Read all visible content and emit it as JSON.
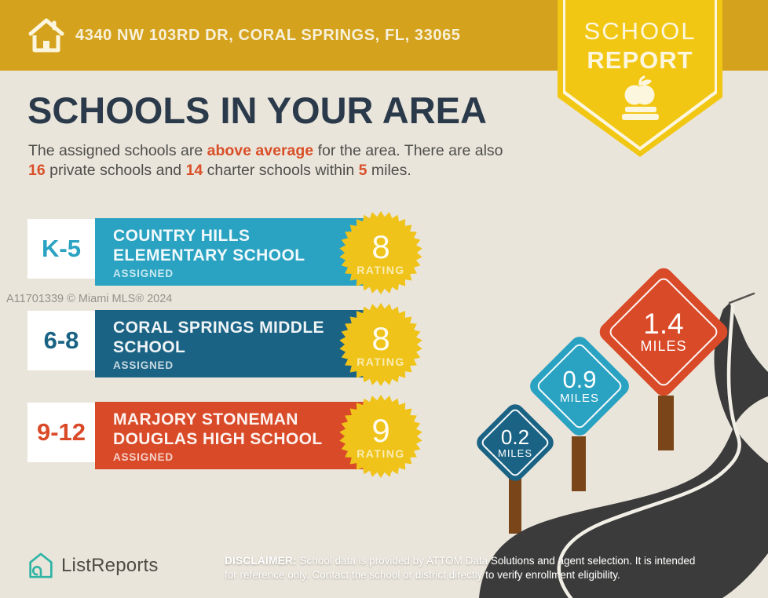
{
  "colors": {
    "beige": "#EAE5DB",
    "header_gold": "#D4A21C",
    "ribbon_yellow": "#F2C714",
    "badge_yellow": "#EFC31A",
    "navy": "#2B3A4A",
    "accent": "#D94F28",
    "teal": "#2AA2C2",
    "dark_blue": "#1B6384",
    "red": "#D94A28",
    "road": "#3B3B3B",
    "post_brown": "#7A4518",
    "brand_teal": "#2DB4A4"
  },
  "header": {
    "address": "4340 NW 103RD DR, CORAL SPRINGS, FL, 33065",
    "badge_line1": "SCHOOL",
    "badge_line2": "REPORT"
  },
  "title": "SCHOOLS IN YOUR AREA",
  "subtitle": {
    "part1": "The assigned schools are ",
    "highlight1": "above average",
    "part2": " for the area. There are also ",
    "private_count": "16",
    "part3": " private schools and ",
    "charter_count": "14",
    "part4": " charter schools within ",
    "radius_miles": "5",
    "part5": " miles."
  },
  "schools": [
    {
      "grades": "K-5",
      "name": "COUNTRY HILLS ELEMENTARY SCHOOL",
      "status": "ASSIGNED",
      "rating": "8",
      "rating_label": "RATING",
      "color": "#2AA2C2"
    },
    {
      "grades": "6-8",
      "name": "CORAL SPRINGS MIDDLE SCHOOL",
      "status": "ASSIGNED",
      "rating": "8",
      "rating_label": "RATING",
      "color": "#1B6384"
    },
    {
      "grades": "9-12",
      "name": "MARJORY STONEMAN DOUGLAS HIGH SCHOOL",
      "status": "ASSIGNED",
      "rating": "9",
      "rating_label": "RATING",
      "color": "#D94A28"
    }
  ],
  "signs": [
    {
      "distance": "0.2",
      "unit": "MILES",
      "color": "#1B6384"
    },
    {
      "distance": "0.9",
      "unit": "MILES",
      "color": "#2AA2C2"
    },
    {
      "distance": "1.4",
      "unit": "MILES",
      "color": "#D94A28"
    }
  ],
  "watermark": "A11701339 © Miami MLS® 2024",
  "footer": {
    "brand": "ListReports",
    "disclaimer_label": "DISCLAIMER:",
    "disclaimer_text": " School data is provided by ATTOM Data Solutions and agent selection. It is intended for reference only. Contact the school or district directly to verify enrollment eligibility."
  }
}
